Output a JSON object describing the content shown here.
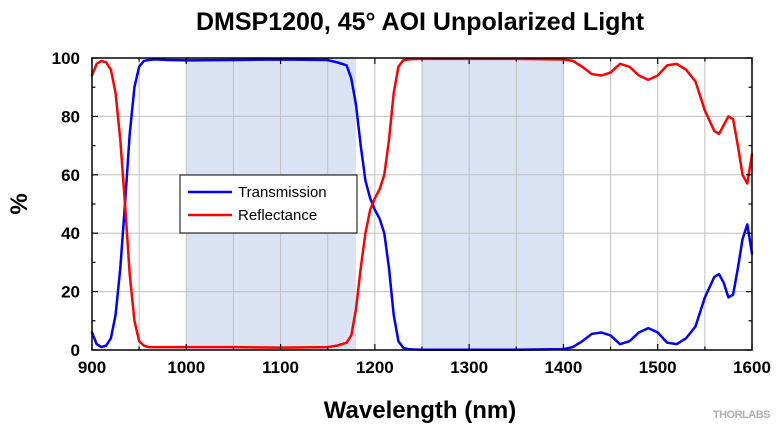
{
  "chart_data": {
    "type": "line",
    "title": "DMSP1200, 45° AOI Unpolarized Light",
    "xlabel": "Wavelength (nm)",
    "ylabel": "%",
    "xlim": [
      900,
      1600
    ],
    "ylim": [
      0,
      100
    ],
    "x_ticks": [
      900,
      1000,
      1100,
      1200,
      1300,
      1400,
      1500,
      1600
    ],
    "y_ticks": [
      0,
      20,
      40,
      60,
      80,
      100
    ],
    "grid": true,
    "legend_position": "center-left",
    "shaded_regions": [
      [
        1000,
        1180
      ],
      [
        1250,
        1400
      ]
    ],
    "shade_color": "#dae3f3",
    "series": [
      {
        "name": "Transmission",
        "color": "#0000ff",
        "x": [
          900,
          905,
          910,
          915,
          920,
          925,
          930,
          935,
          940,
          945,
          950,
          955,
          960,
          965,
          970,
          980,
          1000,
          1050,
          1100,
          1150,
          1160,
          1170,
          1175,
          1180,
          1185,
          1190,
          1195,
          1200,
          1205,
          1210,
          1215,
          1220,
          1225,
          1230,
          1235,
          1240,
          1250,
          1300,
          1350,
          1400,
          1410,
          1420,
          1430,
          1440,
          1450,
          1460,
          1470,
          1480,
          1490,
          1500,
          1510,
          1520,
          1530,
          1540,
          1550,
          1560,
          1565,
          1570,
          1575,
          1580,
          1585,
          1590,
          1595,
          1600
        ],
        "values": [
          6,
          2,
          1,
          1.5,
          4,
          12,
          28,
          50,
          74,
          90,
          97,
          99,
          99.3,
          99.5,
          99.5,
          99.3,
          99.2,
          99.3,
          99.5,
          99.3,
          98.5,
          97.5,
          93,
          84,
          70,
          58,
          52,
          48,
          45,
          40,
          28,
          12,
          3,
          0.8,
          0.3,
          0.2,
          0.1,
          0.1,
          0.1,
          0.3,
          1,
          3,
          5.5,
          6,
          5,
          2,
          3,
          6,
          7.5,
          6,
          2.5,
          2,
          4,
          8,
          18,
          25,
          26,
          23,
          18,
          19,
          28,
          38,
          43,
          33
        ]
      },
      {
        "name": "Reflectance",
        "color": "#ff0000",
        "x": [
          900,
          905,
          910,
          915,
          920,
          925,
          930,
          935,
          940,
          945,
          950,
          955,
          960,
          965,
          970,
          980,
          1000,
          1050,
          1100,
          1150,
          1160,
          1170,
          1175,
          1180,
          1185,
          1190,
          1195,
          1200,
          1205,
          1210,
          1215,
          1220,
          1225,
          1230,
          1235,
          1240,
          1250,
          1300,
          1350,
          1400,
          1410,
          1420,
          1430,
          1440,
          1450,
          1460,
          1470,
          1480,
          1490,
          1500,
          1510,
          1520,
          1530,
          1540,
          1550,
          1560,
          1565,
          1570,
          1575,
          1580,
          1585,
          1590,
          1595,
          1600
        ],
        "values": [
          94,
          98,
          99,
          98.5,
          96,
          88,
          72,
          50,
          26,
          10,
          3,
          1.5,
          1,
          1,
          1,
          1,
          1,
          1,
          0.8,
          1,
          1.5,
          2.5,
          5,
          14,
          28,
          40,
          48,
          52,
          55,
          60,
          72,
          88,
          97,
          99.2,
          99.5,
          99.6,
          99.7,
          99.7,
          99.7,
          99.5,
          99,
          97,
          94.5,
          94,
          95,
          98,
          97,
          94,
          92.5,
          94,
          97.5,
          98,
          96,
          92,
          82,
          75,
          74,
          77,
          80,
          79,
          70,
          60,
          57,
          67
        ]
      }
    ]
  },
  "branding": {
    "logo": "THORLABS"
  }
}
